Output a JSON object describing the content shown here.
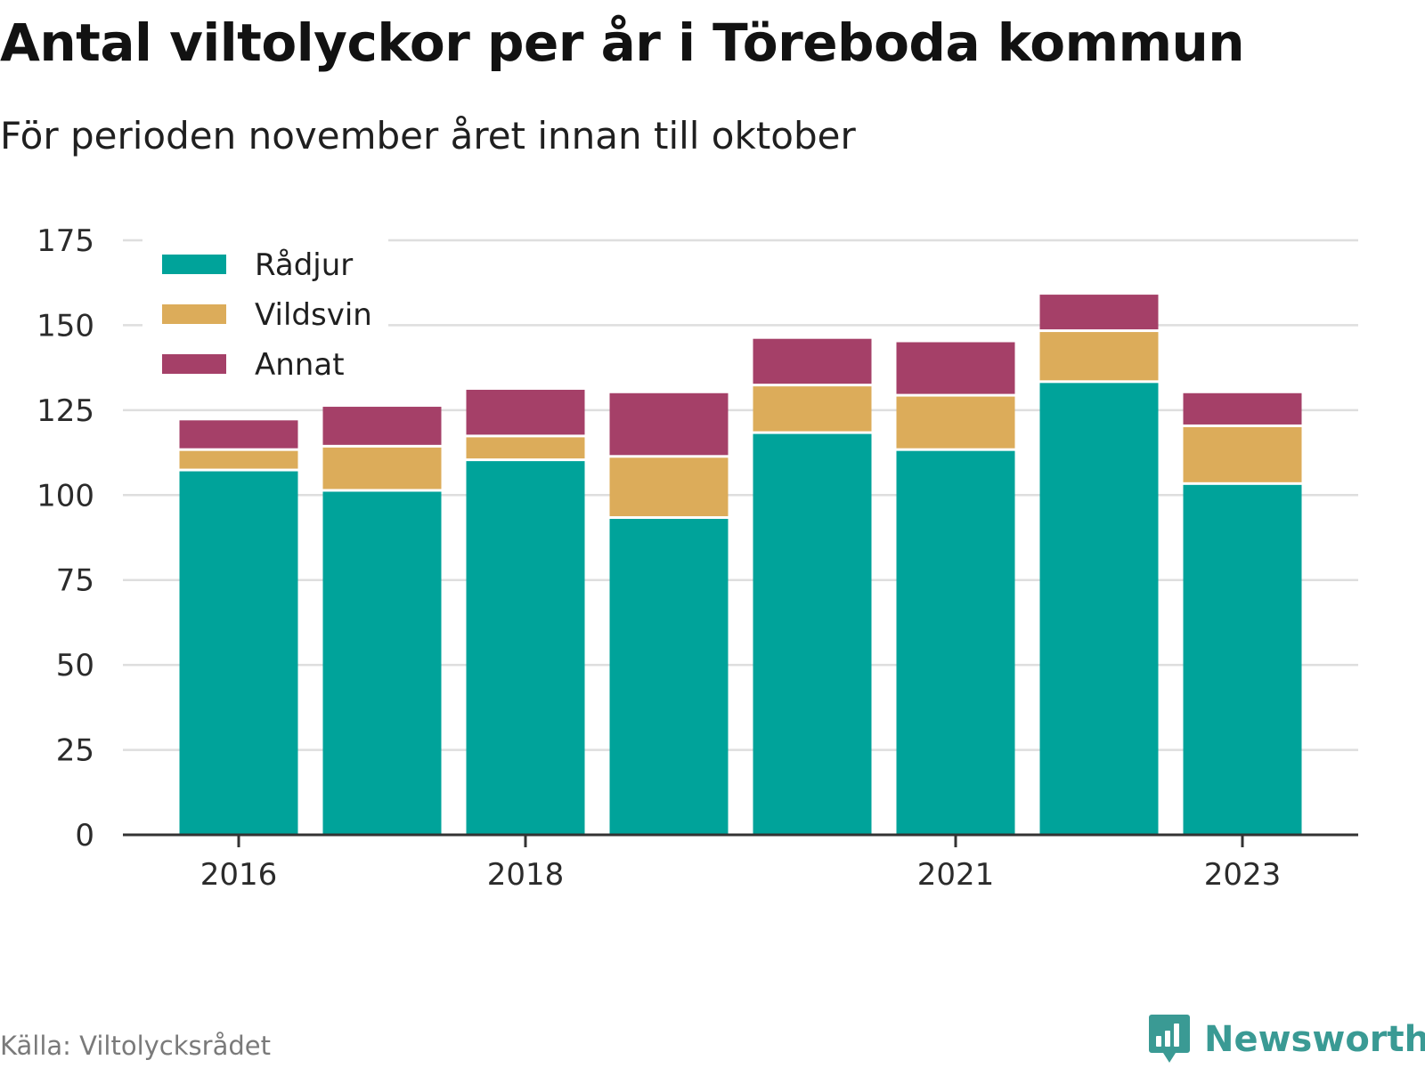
{
  "title": "Antal viltolyckor per år i Töreboda kommun",
  "subtitle": "För perioden november året innan till oktober",
  "source": "Källa: Viltolycksrådet",
  "brand": "Newsworthy",
  "colors": {
    "radjur": "#00a39a",
    "vildsvin": "#dcac5a",
    "annat": "#a54068",
    "grid": "#dedede",
    "axis": "#333333",
    "brand": "#3a9a94"
  },
  "chart_data": {
    "type": "bar",
    "stacked": true,
    "categories": [
      "2016",
      "2017",
      "2018",
      "2019",
      "2020",
      "2021",
      "2022",
      "2023"
    ],
    "x_tick_labels": [
      "2016",
      "2018",
      "2021",
      "2023"
    ],
    "series": [
      {
        "name": "Rådjur",
        "color": "#00a39a",
        "values": [
          107,
          101,
          110,
          93,
          118,
          113,
          133,
          103
        ]
      },
      {
        "name": "Vildsvin",
        "color": "#dcac5a",
        "values": [
          6,
          13,
          7,
          18,
          14,
          16,
          15,
          17
        ]
      },
      {
        "name": "Annat",
        "color": "#a54068",
        "values": [
          9,
          12,
          14,
          19,
          14,
          16,
          11,
          10
        ]
      }
    ],
    "y_ticks": [
      0,
      25,
      50,
      75,
      100,
      125,
      150,
      175
    ],
    "ylim": [
      0,
      175
    ],
    "grid": true,
    "legend_position": "top-left",
    "xlabel": "",
    "ylabel": ""
  }
}
